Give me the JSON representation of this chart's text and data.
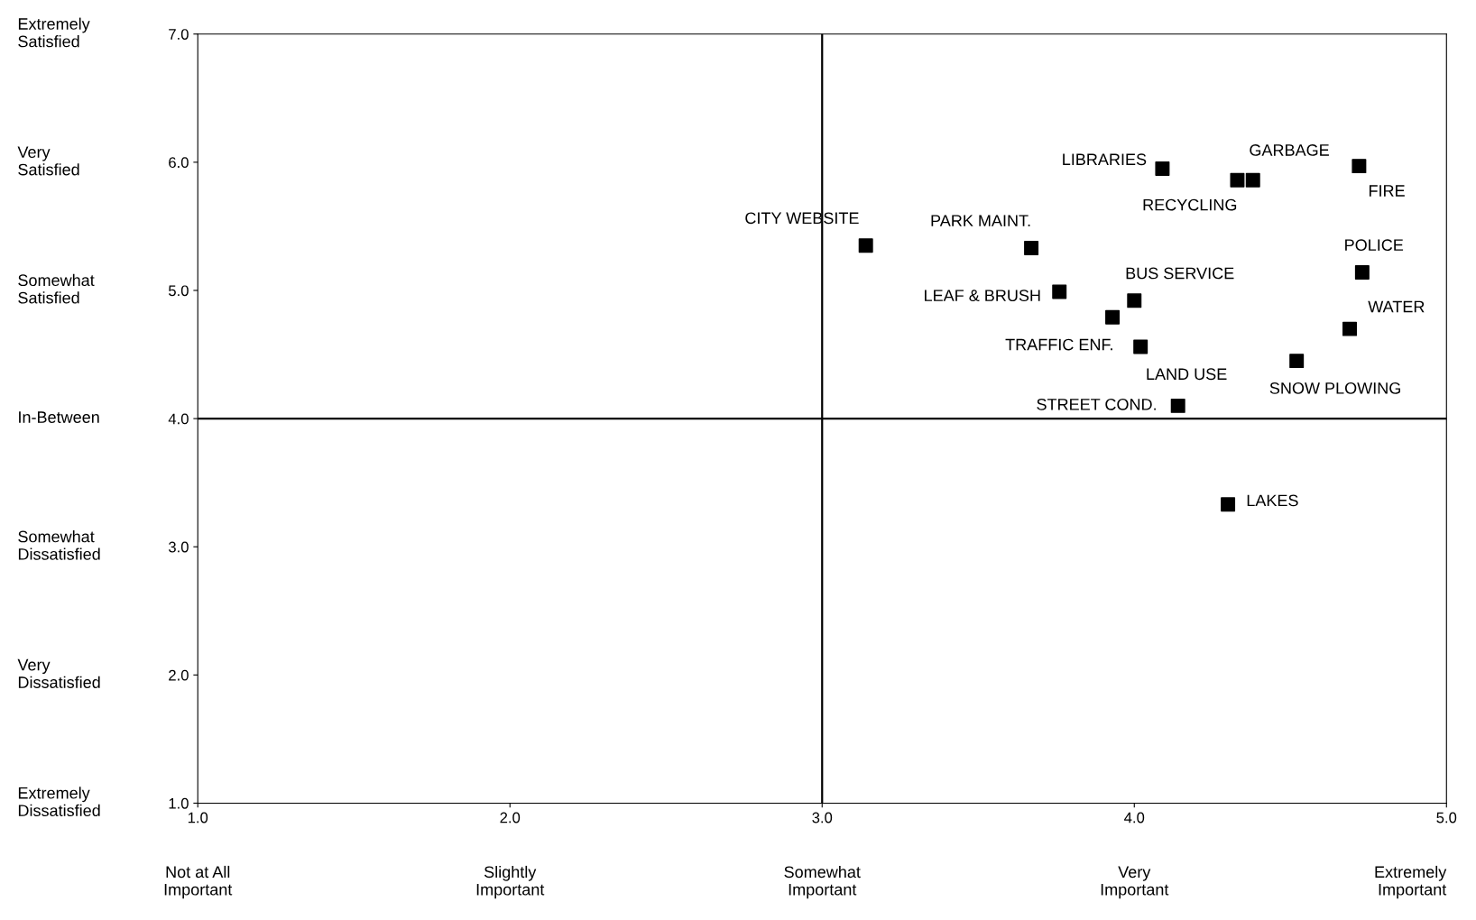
{
  "chart_data": {
    "type": "scatter",
    "marker": "square",
    "grid": false,
    "legend": false,
    "xlim": [
      1.0,
      5.0
    ],
    "ylim": [
      1.0,
      7.0
    ],
    "xticks": [
      {
        "value": 1,
        "label": "1.0"
      },
      {
        "value": 2,
        "label": "2.0"
      },
      {
        "value": 3,
        "label": "3.0"
      },
      {
        "value": 4,
        "label": "4.0"
      },
      {
        "value": 5,
        "label": "5.0"
      }
    ],
    "yticks": [
      {
        "value": 1,
        "label": "1.0"
      },
      {
        "value": 2,
        "label": "2.0"
      },
      {
        "value": 3,
        "label": "3.0"
      },
      {
        "value": 4,
        "label": "4.0"
      },
      {
        "value": 5,
        "label": "5.0"
      },
      {
        "value": 6,
        "label": "6.0"
      },
      {
        "value": 7,
        "label": "7.0"
      }
    ],
    "annotations": [
      "Extremely\nDissatisfied",
      "Very\nDissatisfied",
      "Somewhat\nDissatisfied",
      "In-Between",
      "Somewhat\nSatisfied",
      "Very\nSatisfied",
      "Extremely\nSatisfied",
      "Not at All\nImportant",
      "Slightly\nImportant",
      "Somewhat\nImportant",
      "Very\nImportant",
      "Extremely\nImportant"
    ],
    "ref_lines": [
      {
        "axis": "x",
        "value": 3.0,
        "color": "#000000"
      },
      {
        "axis": "y",
        "value": 4.0,
        "color": "#000000"
      }
    ],
    "series": [
      {
        "name": "LIBRARIES",
        "color": "#000000",
        "x": [
          4.09
        ],
        "values": [
          5.95
        ]
      },
      {
        "name": "GARBAGE",
        "color": "#000000",
        "x": [
          4.38
        ],
        "values": [
          5.86
        ]
      },
      {
        "name": "RECYCLING",
        "color": "#000000",
        "x": [
          4.33
        ],
        "values": [
          5.86
        ]
      },
      {
        "name": "FIRE",
        "color": "#000000",
        "x": [
          4.72
        ],
        "values": [
          5.97
        ]
      },
      {
        "name": "CITY WEBSITE",
        "color": "#000000",
        "x": [
          3.14
        ],
        "values": [
          5.35
        ]
      },
      {
        "name": "PARK MAINT.",
        "color": "#000000",
        "x": [
          3.67
        ],
        "values": [
          5.33
        ]
      },
      {
        "name": "POLICE",
        "color": "#000000",
        "x": [
          4.73
        ],
        "values": [
          5.14
        ]
      },
      {
        "name": "LEAF & BRUSH",
        "color": "#000000",
        "x": [
          3.76
        ],
        "values": [
          4.99
        ]
      },
      {
        "name": "BUS SERVICE",
        "color": "#000000",
        "x": [
          4.0
        ],
        "values": [
          4.92
        ]
      },
      {
        "name": "WATER",
        "color": "#000000",
        "x": [
          4.69
        ],
        "values": [
          4.7
        ]
      },
      {
        "name": "TRAFFIC ENF.",
        "color": "#000000",
        "x": [
          3.93
        ],
        "values": [
          4.79
        ]
      },
      {
        "name": "LAND USE",
        "color": "#000000",
        "x": [
          4.02
        ],
        "values": [
          4.56
        ]
      },
      {
        "name": "SNOW PLOWING",
        "color": "#000000",
        "x": [
          4.52
        ],
        "values": [
          4.45
        ]
      },
      {
        "name": "STREET COND.",
        "color": "#000000",
        "x": [
          4.14
        ],
        "values": [
          4.1
        ]
      },
      {
        "name": "LAKES",
        "color": "#000000",
        "x": [
          4.3
        ],
        "values": [
          3.33
        ]
      }
    ]
  }
}
